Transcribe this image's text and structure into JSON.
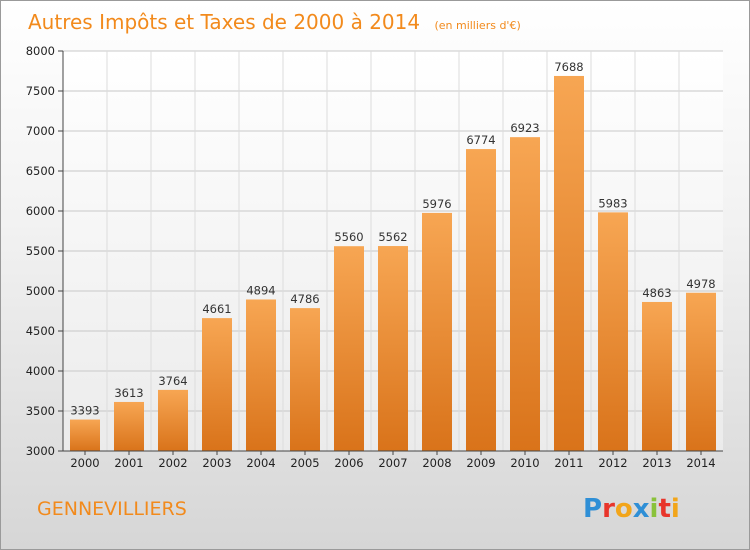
{
  "chart_data": {
    "type": "bar",
    "title": "Autres Impôts et Taxes de 2000 à 2014",
    "subtitle": "(en milliers d'€)",
    "categories": [
      "2000",
      "2001",
      "2002",
      "2003",
      "2004",
      "2005",
      "2006",
      "2007",
      "2008",
      "2009",
      "2010",
      "2011",
      "2012",
      "2013",
      "2014"
    ],
    "values": [
      3393,
      3613,
      3764,
      4661,
      4894,
      4786,
      5560,
      5562,
      5976,
      6774,
      6923,
      7688,
      5983,
      4863,
      4978
    ],
    "ylim": [
      3000,
      8000
    ],
    "yticks": [
      3000,
      3500,
      4000,
      4500,
      5000,
      5500,
      6000,
      6500,
      7000,
      7500,
      8000
    ],
    "grid": true,
    "bar_color_top": "#f7a653",
    "bar_color_bottom": "#d9731a"
  },
  "footer": {
    "city": "GENNEVILLIERS",
    "brand": "Proxiti",
    "brand_colors": [
      "#2f8fd6",
      "#e8352b",
      "#f2a51a",
      "#2f8fd6",
      "#8ac23b",
      "#e8352b",
      "#f2a51a"
    ]
  }
}
